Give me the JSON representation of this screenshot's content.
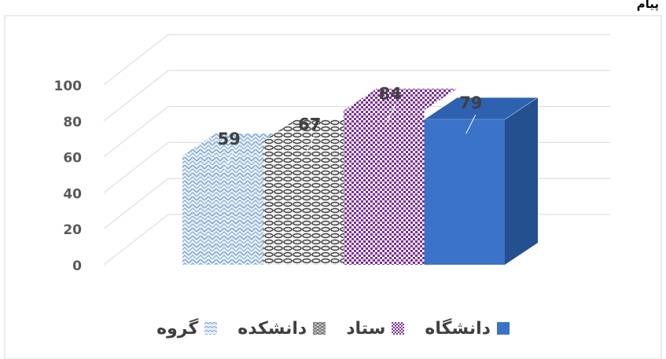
{
  "chart_data": {
    "type": "bar",
    "title": "",
    "xlabel": "",
    "ylabel": "",
    "ylim": [
      0,
      100
    ],
    "yticks": [
      "0",
      "20",
      "40",
      "60",
      "80",
      "100"
    ],
    "grid": true,
    "legend_position": "bottom",
    "categories": [
      "گروه",
      "دانشکده",
      "ستاد",
      "دانشگاه"
    ],
    "values": [
      59,
      67,
      84,
      79
    ],
    "data_labels": [
      "59",
      "67",
      "84",
      "79"
    ],
    "colors": {
      "گروه": "#8fb4d6",
      "دانشکده": "#6b6b6b",
      "ستاد": "#8a3fa6",
      "دانشگاه": "#3a73c8"
    }
  },
  "legend": {
    "items": [
      {
        "label": "دانشگاه",
        "color": "#3a73c8"
      },
      {
        "label": "ستاد",
        "color": "#8a3fa6"
      },
      {
        "label": "دانشکده",
        "color": "#6b6b6b"
      },
      {
        "label": "گروه",
        "color": "#8fb4d6"
      }
    ]
  },
  "page": {
    "heading_fragment": "پیام"
  }
}
